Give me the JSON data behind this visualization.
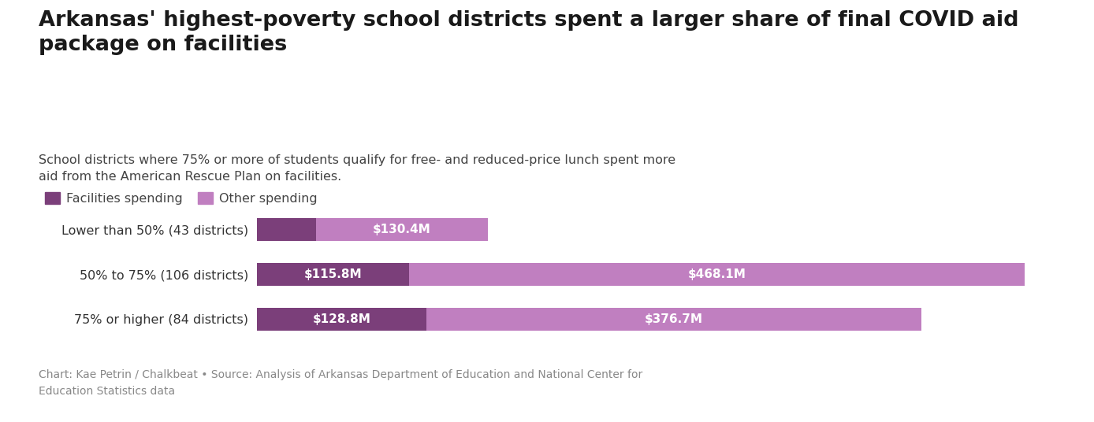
{
  "title": "Arkansas' highest-poverty school districts spent a larger share of final COVID aid\npackage on facilities",
  "subtitle": "School districts where 75% or more of students qualify for free- and reduced-price lunch spent more\naid from the American Rescue Plan on facilities.",
  "caption": "Chart: Kae Petrin / Chalkbeat • Source: Analysis of Arkansas Department of Education and National Center for\nEducation Statistics data",
  "categories": [
    "Lower than 50% (43 districts)",
    "50% to 75% (106 districts)",
    "75% or higher (84 districts)"
  ],
  "facilities_values": [
    45.0,
    115.8,
    128.8
  ],
  "other_values": [
    130.4,
    468.1,
    376.7
  ],
  "facilities_labels": [
    "",
    "$115.8M",
    "$128.8M"
  ],
  "other_labels": [
    "$130.4M",
    "$468.1M",
    "$376.7M"
  ],
  "facilities_color": "#7B3F7A",
  "other_color": "#C07FC0",
  "background_color": "#FFFFFF",
  "legend_facilities": "Facilities spending",
  "legend_other": "Other spending",
  "bar_height": 0.52,
  "xlim": [
    0,
    620
  ]
}
